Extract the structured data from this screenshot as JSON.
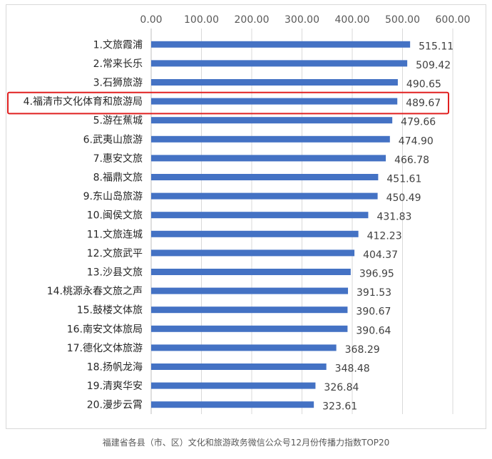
{
  "caption": "福建省各县（市、区）文化和旅游政务微信公众号12月份传播力指数TOP20",
  "chart_data": {
    "type": "bar",
    "orientation": "horizontal",
    "title": "",
    "xlim": [
      0,
      600
    ],
    "xticks": [
      "0.00",
      "100.00",
      "200.00",
      "300.00",
      "400.00",
      "500.00",
      "600.00"
    ],
    "axis_position": "top",
    "grid": true,
    "bar_color": "#4472C4",
    "highlight_color": "#E02020",
    "highlight_index": 3,
    "categories": [
      "1.文旅霞浦",
      "2.常来长乐",
      "3.石狮旅游",
      "4.福清市文化体育和旅游局",
      "5.游在蕉城",
      "6.武夷山旅游",
      "7.惠安文旅",
      "8.福鼎文旅",
      "9.东山岛旅游",
      "10.闽侯文旅",
      "11.文旅连城",
      "12.文旅武平",
      "13.沙县文旅",
      "14.桃源永春文旅之声",
      "15.鼓楼文体旅",
      "16.南安文体旅局",
      "17.德化文体旅游",
      "18.扬帆龙海",
      "19.清爽华安",
      "20.漫步云霄"
    ],
    "values": [
      515.11,
      509.42,
      490.65,
      489.67,
      479.66,
      474.9,
      466.78,
      451.61,
      450.49,
      431.83,
      412.23,
      404.37,
      396.95,
      391.53,
      390.67,
      390.64,
      368.29,
      348.48,
      326.84,
      323.61
    ],
    "value_labels": [
      "515.11",
      "509.42",
      "490.65",
      "489.67",
      "479.66",
      "474.90",
      "466.78",
      "451.61",
      "450.49",
      "431.83",
      "412.23",
      "404.37",
      "396.95",
      "391.53",
      "390.67",
      "390.64",
      "368.29",
      "348.48",
      "326.84",
      "323.61"
    ]
  }
}
